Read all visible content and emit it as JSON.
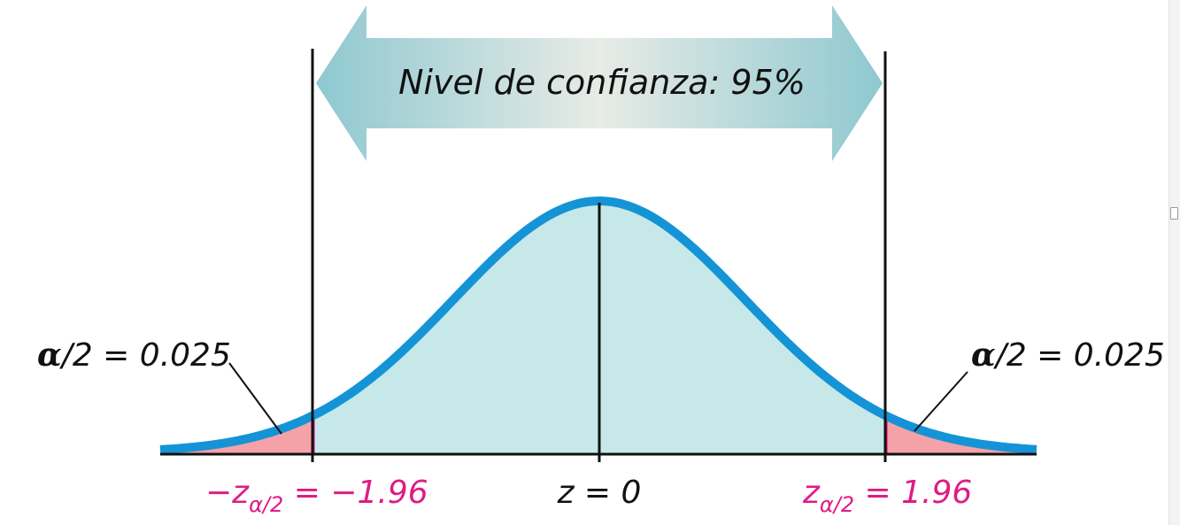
{
  "banner": {
    "text": "Nivel de confianza: 95%"
  },
  "labels": {
    "left_tail": {
      "alpha": "α",
      "rest": "/2 = 0.025"
    },
    "right_tail": {
      "alpha": "α",
      "rest": "/2 = 0.025"
    },
    "left_z": {
      "prefix": "−z",
      "subscript": "α/2",
      "value": " = −1.96"
    },
    "center_z": {
      "text": "z = 0"
    },
    "right_z": {
      "prefix": "z",
      "subscript": "α/2",
      "value": " = 1.96"
    }
  },
  "distribution": {
    "z_critical": 1.96,
    "confidence": 0.95,
    "tail_area": 0.025
  },
  "colors": {
    "curve": "#1494d6",
    "body_fill": "#c6e8e8",
    "tail_fill": "#f4a2a8",
    "tail_edge": "#e3007f",
    "label_pink": "#e01b84",
    "arrow_edge": "#8ec8d0",
    "arrow_mid": "#e8ebe6",
    "ink": "#111111"
  }
}
